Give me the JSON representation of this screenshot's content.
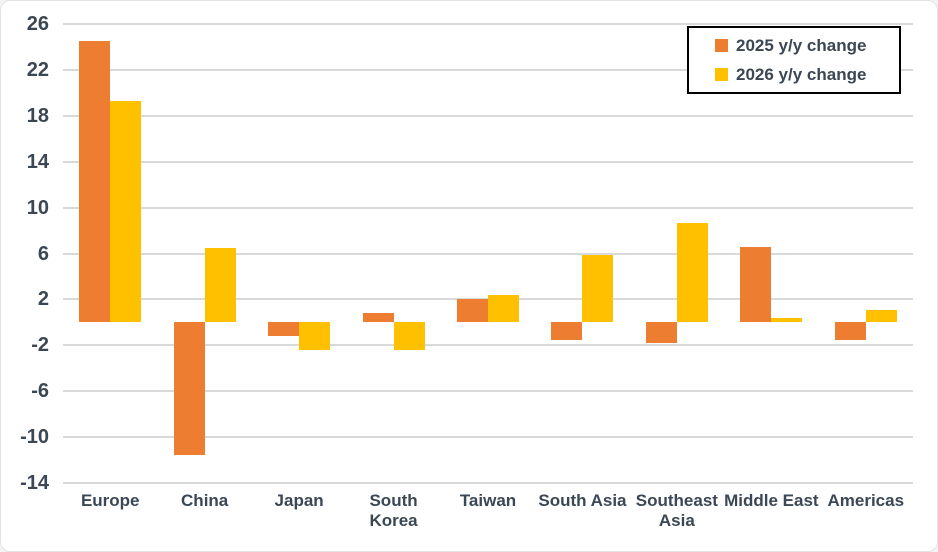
{
  "chart_data": {
    "type": "bar",
    "title": "",
    "categories": [
      "Europe",
      "China",
      "Japan",
      "South Korea",
      "Taiwan",
      "South Asia",
      "Southeast Asia",
      "Middle East",
      "Americas"
    ],
    "series": [
      {
        "name": "2025 y/y change",
        "color": "#ED7D31",
        "values": [
          24.5,
          -11.6,
          -1.2,
          0.8,
          2.0,
          -1.5,
          -1.8,
          6.6,
          -1.5
        ]
      },
      {
        "name": "2026 y/y change",
        "color": "#FFC000",
        "values": [
          19.3,
          6.5,
          -2.4,
          -2.4,
          2.4,
          5.9,
          8.7,
          0.4,
          1.1
        ]
      }
    ],
    "xlabel": "",
    "ylabel": "",
    "ylim": [
      -14,
      26
    ],
    "yticks": [
      26,
      22,
      18,
      14,
      10,
      6,
      2,
      -2,
      -6,
      -10,
      -14
    ],
    "grid": true,
    "legend_position": "top-right"
  },
  "colors": {
    "gridline": "#d9d9d9",
    "axis_text": "#3b4754",
    "legend_border": "#000000",
    "background": "#ffffff"
  }
}
